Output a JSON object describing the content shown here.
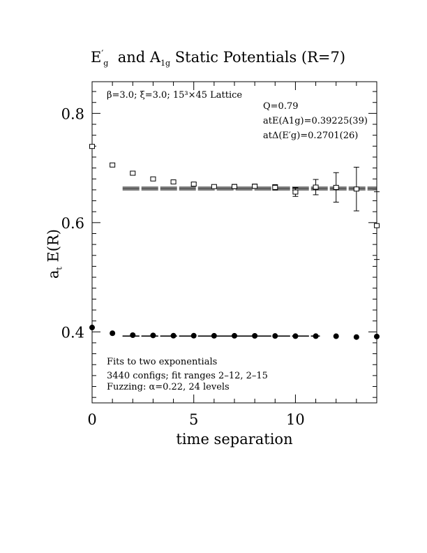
{
  "title": "E′g and A1g Static Potentials (R=7)",
  "title_parts": {
    "eg": "E",
    "eg_prime": "′",
    "eg_sub": "g",
    "and": "and",
    "a": "A",
    "a_sub": "1g",
    "rest": "Static Potentials (R=7)"
  },
  "ylabel": "at E(R)",
  "ylabel_parts": {
    "a": "a",
    "sub": "t",
    "rest": " E(R)"
  },
  "xlabel": "time separation",
  "annotations": {
    "lattice": "β=3.0; ξ=3.0; 15³×45 Lattice",
    "q": "Q=0.79",
    "a1g_energy": "atE(A1g)=0.39225(39)",
    "eg_gap": "atΔ(E′g)=0.2701(26)",
    "fits": "Fits to two exponentials",
    "configs": "3440 configs; fit ranges 2–12, 2–15",
    "fuzzing": "Fuzzing: α=0.22, 24 levels"
  },
  "chart_data": {
    "type": "scatter",
    "xlim": [
      0,
      14
    ],
    "ylim": [
      0.27,
      0.858
    ],
    "x_ticks": [
      0,
      5,
      10
    ],
    "y_ticks": [
      0.4,
      0.6,
      0.8
    ],
    "x_tick_labels": [
      "0",
      "5",
      "10"
    ],
    "y_tick_labels": [
      "0.4",
      "0.6",
      "0.8"
    ],
    "series": [
      {
        "marker": "filled-circle",
        "x": [
          0,
          1,
          2,
          3,
          4,
          5,
          6,
          7,
          8,
          9,
          10,
          11,
          12,
          13,
          14
        ],
        "y": [
          0.408,
          0.3975,
          0.394,
          0.3935,
          0.393,
          0.393,
          0.3928,
          0.3928,
          0.3927,
          0.3925,
          0.3922,
          0.3922,
          0.392,
          0.3905,
          0.3915
        ],
        "err": [
          0,
          0,
          0,
          0,
          0,
          0,
          0,
          0,
          0,
          0,
          0,
          0,
          0,
          0,
          0
        ]
      },
      {
        "marker": "open-square",
        "x": [
          0,
          1,
          2,
          3,
          4,
          5,
          6,
          7,
          8,
          9,
          10,
          11,
          12,
          13,
          14
        ],
        "y": [
          0.7395,
          0.7055,
          0.6905,
          0.68,
          0.6745,
          0.6705,
          0.666,
          0.666,
          0.6665,
          0.6645,
          0.656,
          0.665,
          0.6645,
          0.6615,
          0.5945
        ],
        "err": [
          0,
          0,
          0,
          0,
          0,
          0.003,
          0.003,
          0.004,
          0.004,
          0.005,
          0.008,
          0.014,
          0.027,
          0.04,
          0.062
        ]
      }
    ],
    "fits": [
      {
        "value": 0.39225,
        "error": 0.00039,
        "x_range": [
          1.5,
          11.2
        ]
      },
      {
        "value": 0.6624,
        "error": 0.0026,
        "x_range": [
          1.5,
          14
        ]
      }
    ],
    "grid": false
  }
}
